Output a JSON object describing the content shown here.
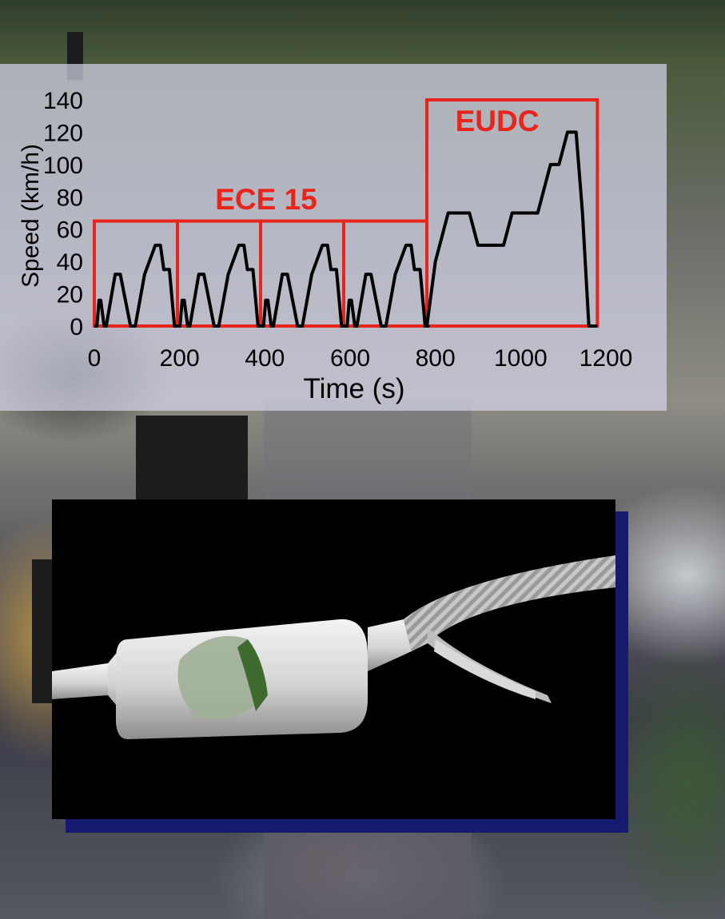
{
  "chart_data": {
    "type": "line",
    "xlabel": "Time (s)",
    "ylabel": "Speed (km/h)",
    "xlim": [
      0,
      1200
    ],
    "ylim": [
      0,
      140
    ],
    "xticks": [
      0,
      200,
      400,
      600,
      800,
      1000,
      1200
    ],
    "yticks": [
      0,
      20,
      40,
      60,
      80,
      100,
      120,
      140
    ],
    "grid": false,
    "series": [
      {
        "x": [
          0,
          6,
          11,
          15,
          23,
          28,
          49,
          61,
          85,
          96,
          118,
          143,
          155,
          163,
          176,
          188,
          195,
          201,
          206,
          211,
          219,
          224,
          245,
          257,
          281,
          292,
          314,
          339,
          351,
          359,
          372,
          384,
          391,
          397,
          402,
          407,
          415,
          420,
          441,
          453,
          477,
          488,
          510,
          535,
          547,
          555,
          568,
          580,
          587,
          593,
          598,
          603,
          611,
          616,
          637,
          649,
          673,
          684,
          706,
          731,
          743,
          751,
          764,
          776,
          783,
          780,
          800,
          830,
          880,
          900,
          960,
          980,
          1010,
          1040,
          1070,
          1090,
          1110,
          1130,
          1145,
          1160,
          1180
        ],
        "y": [
          0,
          0,
          16,
          16,
          0,
          0,
          32,
          32,
          0,
          0,
          32,
          50,
          50,
          35,
          35,
          0,
          0,
          0,
          16,
          16,
          0,
          0,
          32,
          32,
          0,
          0,
          32,
          50,
          50,
          35,
          35,
          0,
          0,
          0,
          16,
          16,
          0,
          0,
          32,
          32,
          0,
          0,
          32,
          50,
          50,
          35,
          35,
          0,
          0,
          0,
          16,
          16,
          0,
          0,
          32,
          32,
          0,
          0,
          32,
          50,
          50,
          35,
          35,
          0,
          0,
          0,
          40,
          70,
          70,
          50,
          50,
          70,
          70,
          70,
          100,
          100,
          120,
          120,
          70,
          0,
          0
        ]
      }
    ],
    "annotations": [
      {
        "text": "ECE 15",
        "color": "#e8251c"
      },
      {
        "text": "EUDC",
        "color": "#e8251c"
      }
    ],
    "phase_boxes": [
      {
        "x0": 0,
        "x1": 195,
        "y1": 65
      },
      {
        "x0": 195,
        "x1": 390,
        "y1": 65
      },
      {
        "x0": 390,
        "x1": 585,
        "y1": 65
      },
      {
        "x0": 585,
        "x1": 780,
        "y1": 65
      },
      {
        "x0": 780,
        "x1": 1180,
        "y1": 140
      }
    ],
    "colors": {
      "line": "#000000",
      "boxes": "#e8251c",
      "text": "#000000"
    }
  }
}
